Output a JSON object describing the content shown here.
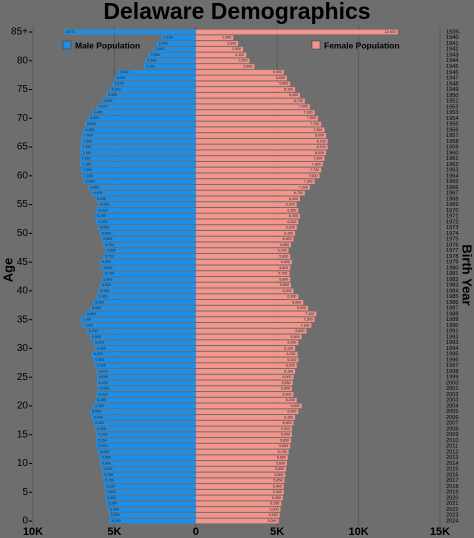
{
  "chart_data": {
    "type": "pyramid",
    "title": "Delaware Demographics",
    "y_label": "Age",
    "y2_label": "Birth Year",
    "categories": [
      "2024",
      "2023",
      "2022",
      "2021",
      "2020",
      "2019",
      "2018",
      "2017",
      "2016",
      "2015",
      "2014",
      "2013",
      "2012",
      "2011",
      "2010",
      "2009",
      "2008",
      "2007",
      "2006",
      "2005",
      "2004",
      "2003",
      "2002",
      "2001",
      "2000",
      "1999",
      "1998",
      "1997",
      "1996",
      "1995",
      "1994",
      "1993",
      "1992",
      "1991",
      "1990",
      "1989",
      "1988",
      "1987",
      "1986",
      "1985",
      "1984",
      "1983",
      "1982",
      "1981",
      "1980",
      "1979",
      "1978",
      "1977",
      "1976",
      "1975",
      "1974",
      "1973",
      "1972",
      "1971",
      "1970",
      "1969",
      "1968",
      "1967",
      "1966",
      "1965",
      "1964",
      "1963",
      "1962",
      "1961",
      "1960",
      "1959",
      "1958",
      "1957",
      "1956",
      "1955",
      "1954",
      "1953",
      "1952",
      "1951",
      "1950",
      "1949",
      "1948",
      "1947",
      "1946",
      "1945",
      "1944",
      "1943",
      "1942",
      "1941",
      "1940",
      "1939-"
    ],
    "series": [
      {
        "name": "Male Population",
        "color": "#1e8fe8",
        "side": "left",
        "values": [
          5290,
          5350,
          5400,
          5500,
          5560,
          5600,
          5620,
          5700,
          5750,
          5800,
          5900,
          5900,
          6000,
          6100,
          6150,
          6100,
          6200,
          6300,
          6400,
          6500,
          6300,
          6200,
          6100,
          6000,
          6100,
          6050,
          6100,
          6200,
          6300,
          6400,
          6200,
          6300,
          6500,
          6700,
          7000,
          7100,
          6800,
          6500,
          6300,
          6100,
          6000,
          5900,
          5800,
          5700,
          5800,
          5900,
          5700,
          5600,
          5700,
          5800,
          5900,
          6000,
          6100,
          6200,
          6100,
          6000,
          6200,
          6400,
          6600,
          6900,
          7000,
          7050,
          7100,
          7150,
          7100,
          7100,
          7050,
          7000,
          6900,
          6800,
          6600,
          6400,
          6100,
          5800,
          5500,
          5300,
          5100,
          5000,
          4800,
          3200,
          3100,
          2900,
          2600,
          2400,
          2100,
          8071
        ],
        "value_labels": [
          "5,290",
          "5,350",
          "5,400",
          "5,500",
          "5,560",
          "5,600",
          "5,620",
          "5,700",
          "5,750",
          "5,800",
          "5,900",
          "5,900",
          "6,000",
          "6,100",
          "6,150",
          "6,100",
          "6,200",
          "6,300",
          "6,400",
          "6,500",
          "6,300",
          "6,200",
          "6,100",
          "6,000",
          "6,100",
          "6,050",
          "6,100",
          "6,200",
          "6,300",
          "6,400",
          "6,200",
          "6,300",
          "6,500",
          "6,700",
          "7,000",
          "7,100",
          "6,800",
          "6,500",
          "6,300",
          "6,100",
          "6,000",
          "5,900",
          "5,800",
          "5,700",
          "5,800",
          "5,900",
          "5,700",
          "5,600",
          "5,700",
          "5,800",
          "5,900",
          "6,000",
          "6,100",
          "6,200",
          "6,100",
          "6,000",
          "6,200",
          "6,400",
          "6,600",
          "6,900",
          "7,000",
          "7,050",
          "7,100",
          "7,150",
          "7,100",
          "7,100",
          "7,050",
          "7,000",
          "6,900",
          "6,800",
          "6,600",
          "6,400",
          "6,100",
          "5,800",
          "5,500",
          "5,300",
          "5,100",
          "5,000",
          "4,800",
          "3,200",
          "3,100",
          "2,900",
          "2,600",
          "2,400",
          "2,100",
          "8,071"
        ]
      },
      {
        "name": "Female Population",
        "color": "#f4958c",
        "side": "right",
        "values": [
          5090,
          5150,
          5200,
          5250,
          5350,
          5400,
          5400,
          5450,
          5500,
          5550,
          5600,
          5650,
          5700,
          5800,
          5850,
          5900,
          5900,
          6000,
          6100,
          6300,
          6500,
          6200,
          6000,
          5900,
          5950,
          6000,
          6100,
          6200,
          6300,
          6250,
          6100,
          6300,
          6500,
          6800,
          7100,
          7300,
          7400,
          6900,
          6600,
          6300,
          6000,
          5850,
          5800,
          5750,
          5800,
          5900,
          5800,
          5700,
          5850,
          6000,
          6100,
          6200,
          6300,
          6400,
          6300,
          6200,
          6400,
          6700,
          7000,
          7300,
          7600,
          7700,
          7800,
          7900,
          8000,
          8100,
          8100,
          8000,
          7900,
          7700,
          7500,
          7300,
          7000,
          6700,
          6400,
          6100,
          5800,
          5600,
          5400,
          3600,
          3300,
          3100,
          2900,
          2600,
          2300,
          12400
        ],
        "value_labels": [
          "5,090",
          "5,150",
          "5,200",
          "5,250",
          "5,350",
          "5,400",
          "5,400",
          "5,450",
          "5,500",
          "5,550",
          "5,600",
          "5,650",
          "5,700",
          "5,800",
          "5,850",
          "5,900",
          "5,900",
          "6,000",
          "6,100",
          "6,300",
          "6,500",
          "6,200",
          "6,000",
          "5,900",
          "5,950",
          "6,000",
          "6,100",
          "6,200",
          "6,300",
          "6,250",
          "6,100",
          "6,300",
          "6,500",
          "6,800",
          "7,100",
          "7,300",
          "7,400",
          "6,900",
          "6,600",
          "6,300",
          "6,000",
          "5,850",
          "5,800",
          "5,750",
          "5,800",
          "5,900",
          "5,800",
          "5,700",
          "5,850",
          "6,000",
          "6,100",
          "6,200",
          "6,300",
          "6,400",
          "6,300",
          "6,200",
          "6,400",
          "6,700",
          "7,000",
          "7,300",
          "7,600",
          "7,700",
          "7,800",
          "7,900",
          "8,000",
          "8,100",
          "8,100",
          "8,000",
          "7,900",
          "7,700",
          "7,500",
          "7,300",
          "7,000",
          "6,700",
          "6,400",
          "6,100",
          "5,800",
          "5,600",
          "5,400",
          "3,600",
          "3,300",
          "3,100",
          "2,900",
          "2,600",
          "2,300",
          "12,400"
        ]
      }
    ],
    "xlim": [
      -10000,
      15000
    ],
    "xticks": [
      {
        "value": -10000,
        "label": "10K"
      },
      {
        "value": -5000,
        "label": "5K"
      },
      0,
      {
        "value": 5000,
        "label": "5K"
      },
      {
        "value": 10000,
        "label": "10K"
      },
      {
        "value": 15000,
        "label": "15K"
      }
    ],
    "ylim": [
      0,
      85
    ],
    "yticks": [
      0,
      5,
      10,
      15,
      20,
      25,
      30,
      35,
      40,
      45,
      50,
      55,
      60,
      65,
      70,
      75,
      80,
      {
        "value": 85,
        "label": "85+"
      }
    ],
    "grid": true
  }
}
